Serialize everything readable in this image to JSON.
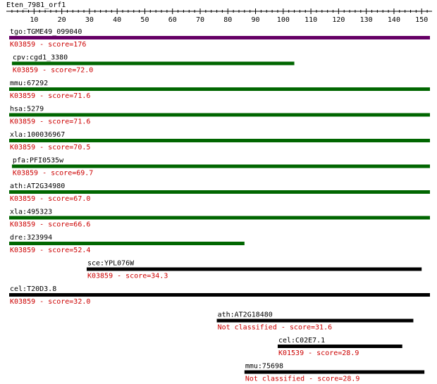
{
  "query": {
    "name": "Eten_7981_orf1",
    "length": 153
  },
  "ruler": {
    "ticks": [
      "10",
      "20",
      "30",
      "40",
      "50",
      "60",
      "70",
      "80",
      "90",
      "100",
      "110",
      "120",
      "130",
      "140",
      "150"
    ]
  },
  "colors": {
    "axis": "#000000",
    "score_text": "#cc0000",
    "bar_top": "#660066",
    "bar_strong": "#006600",
    "bar_weak": "#000000"
  },
  "hits": [
    {
      "name": "tgo:TGME49_099040",
      "label": "K03859 - score=176",
      "color": "#660066",
      "start": 1,
      "end": 153
    },
    {
      "name": "cpv:cgd1_3380",
      "label": "K03859 - score=72.0",
      "color": "#006600",
      "start": 2,
      "end": 104
    },
    {
      "name": "mmu:67292",
      "label": "K03859 - score=71.6",
      "color": "#006600",
      "start": 1,
      "end": 153
    },
    {
      "name": "hsa:5279",
      "label": "K03859 - score=71.6",
      "color": "#006600",
      "start": 1,
      "end": 153
    },
    {
      "name": "xla:100036967",
      "label": "K03859 - score=70.5",
      "color": "#006600",
      "start": 1,
      "end": 153
    },
    {
      "name": "pfa:PFI0535w",
      "label": "K03859 - score=69.7",
      "color": "#006600",
      "start": 2,
      "end": 153
    },
    {
      "name": "ath:AT2G34980",
      "label": "K03859 - score=67.0",
      "color": "#006600",
      "start": 1,
      "end": 153
    },
    {
      "name": "xla:495323",
      "label": "K03859 - score=66.6",
      "color": "#006600",
      "start": 1,
      "end": 153
    },
    {
      "name": "dre:323994",
      "label": "K03859 - score=52.4",
      "color": "#006600",
      "start": 1,
      "end": 86
    },
    {
      "name": "sce:YPL076W",
      "label": "K03859 - score=34.3",
      "color": "#000000",
      "start": 29,
      "end": 150
    },
    {
      "name": "cel:T20D3.8",
      "label": "K03859 - score=32.0",
      "color": "#000000",
      "start": 1,
      "end": 153
    },
    {
      "name": "ath:AT2G18480",
      "label": "Not classified - score=31.6",
      "color": "#000000",
      "start": 76,
      "end": 147
    },
    {
      "name": "cel:C02E7.1",
      "label": "K01539 - score=28.9",
      "color": "#000000",
      "start": 98,
      "end": 143
    },
    {
      "name": "mmu:75698",
      "label": "Not classified - score=28.9",
      "color": "#000000",
      "start": 86,
      "end": 151
    }
  ]
}
